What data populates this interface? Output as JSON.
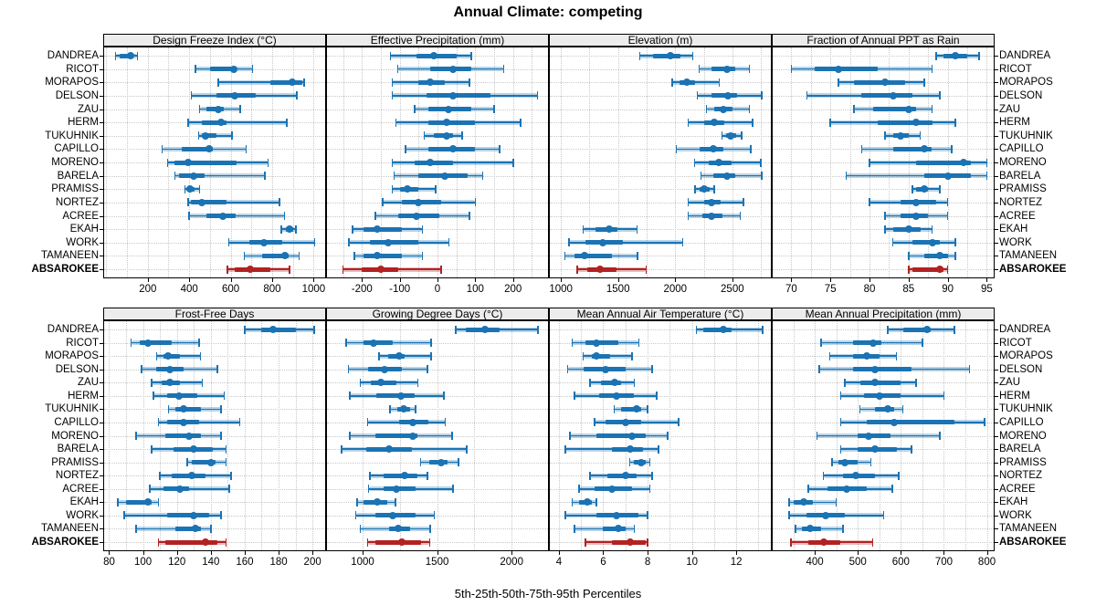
{
  "title": "Annual Climate: competing",
  "caption": "5th-25th-50th-75th-95th Percentiles",
  "colors": {
    "series": "#1b73b3",
    "series_band": "rgba(27,115,179,0.30)",
    "highlight": "#b22222",
    "highlight_band": "rgba(178,34,34,0.30)",
    "strip_bg": "#ececec",
    "grid": "#c8c8c8",
    "text": "#000000"
  },
  "chart_data": {
    "type": "dotplot",
    "subtype": "percentile-whisker",
    "percentiles": [
      5,
      25,
      50,
      75,
      95
    ],
    "legend": "none",
    "grid": "dotted",
    "highlight_site": "ABSAROKEE",
    "sites": [
      "DANDREA",
      "RICOT",
      "MORAPOS",
      "DELSON",
      "ZAU",
      "HERM",
      "TUKUHNIK",
      "CAPILLO",
      "MORENO",
      "BARELA",
      "PRAMISS",
      "NORTEZ",
      "ACREE",
      "EKAH",
      "WORK",
      "TAMANEEN",
      "ABSAROKEE"
    ],
    "panels": [
      {
        "title": "Design Freeze Index (°C)",
        "row": 0,
        "col": 0,
        "xlim": [
          -15,
          1060
        ],
        "ticks": [
          200,
          400,
          600,
          800,
          1000
        ],
        "grid_step": 100,
        "series": [
          [
            45,
            65,
            115,
            130,
            150
          ],
          [
            430,
            500,
            615,
            630,
            705
          ],
          [
            540,
            790,
            895,
            945,
            955
          ],
          [
            410,
            530,
            620,
            720,
            920
          ],
          [
            450,
            485,
            540,
            565,
            645
          ],
          [
            395,
            460,
            555,
            580,
            870
          ],
          [
            445,
            460,
            480,
            530,
            605
          ],
          [
            270,
            365,
            495,
            515,
            675
          ],
          [
            295,
            330,
            395,
            630,
            780
          ],
          [
            330,
            350,
            420,
            475,
            765
          ],
          [
            380,
            390,
            405,
            425,
            450
          ],
          [
            395,
            410,
            460,
            580,
            835
          ],
          [
            400,
            485,
            560,
            625,
            860
          ],
          [
            845,
            865,
            885,
            900,
            915
          ],
          [
            590,
            690,
            760,
            850,
            1005
          ],
          [
            665,
            750,
            860,
            880,
            930
          ],
          [
            585,
            620,
            695,
            790,
            885
          ]
        ]
      },
      {
        "title": "Effective Precipitation (mm)",
        "row": 0,
        "col": 1,
        "xlim": [
          -295,
          295
        ],
        "ticks": [
          -200,
          -100,
          0,
          100,
          200
        ],
        "grid_step": 50,
        "series": [
          [
            -125,
            -55,
            -10,
            50,
            90
          ],
          [
            -105,
            -20,
            40,
            90,
            175
          ],
          [
            -120,
            -50,
            -20,
            20,
            85
          ],
          [
            -120,
            -30,
            40,
            140,
            265
          ],
          [
            -60,
            -25,
            30,
            90,
            150
          ],
          [
            -110,
            -25,
            25,
            100,
            220
          ],
          [
            -35,
            -10,
            25,
            40,
            65
          ],
          [
            -85,
            -25,
            40,
            100,
            165
          ],
          [
            -120,
            -60,
            -20,
            40,
            200
          ],
          [
            -115,
            -50,
            20,
            80,
            120
          ],
          [
            -120,
            -100,
            -80,
            -50,
            -5
          ],
          [
            -145,
            -95,
            -50,
            10,
            100
          ],
          [
            -165,
            -105,
            -55,
            5,
            85
          ],
          [
            -225,
            -195,
            -160,
            -95,
            -40
          ],
          [
            -235,
            -180,
            -130,
            -50,
            30
          ],
          [
            -220,
            -195,
            -160,
            -95,
            -40
          ],
          [
            -250,
            -200,
            -150,
            -105,
            10
          ]
        ]
      },
      {
        "title": "Elevation (m)",
        "row": 0,
        "col": 2,
        "xlim": [
          895,
          2845
        ],
        "ticks": [
          1000,
          1500,
          2000,
          2500
        ],
        "grid_step": 250,
        "series": [
          [
            1690,
            1810,
            1960,
            2045,
            2155
          ],
          [
            2210,
            2320,
            2455,
            2525,
            2650
          ],
          [
            1975,
            2035,
            2105,
            2175,
            2385
          ],
          [
            2195,
            2315,
            2465,
            2545,
            2755
          ],
          [
            2275,
            2345,
            2425,
            2500,
            2650
          ],
          [
            2115,
            2255,
            2345,
            2430,
            2675
          ],
          [
            2410,
            2445,
            2485,
            2535,
            2580
          ],
          [
            2010,
            2210,
            2330,
            2420,
            2660
          ],
          [
            2170,
            2290,
            2385,
            2490,
            2750
          ],
          [
            2225,
            2330,
            2450,
            2525,
            2755
          ],
          [
            2175,
            2215,
            2255,
            2300,
            2340
          ],
          [
            2115,
            2250,
            2315,
            2395,
            2595
          ],
          [
            2115,
            2235,
            2320,
            2410,
            2570
          ],
          [
            1195,
            1305,
            1420,
            1495,
            1665
          ],
          [
            1070,
            1215,
            1365,
            1545,
            2065
          ],
          [
            1035,
            1115,
            1205,
            1445,
            1670
          ],
          [
            1145,
            1230,
            1345,
            1485,
            1745
          ]
        ]
      },
      {
        "title": "Fraction of Annual PPT as Rain",
        "row": 0,
        "col": 3,
        "xlim": [
          67.5,
          96
        ],
        "ticks": [
          70,
          75,
          80,
          85,
          90,
          95
        ],
        "grid_step": 2.5,
        "series": [
          [
            88.5,
            89.5,
            91,
            92.5,
            94
          ],
          [
            70,
            73,
            76,
            81,
            88
          ],
          [
            76,
            78,
            82,
            84.5,
            87
          ],
          [
            72,
            79,
            83,
            85.5,
            89
          ],
          [
            78,
            80.5,
            85,
            86,
            88
          ],
          [
            75,
            81,
            86,
            88,
            91
          ],
          [
            82,
            83,
            84,
            85,
            86.5
          ],
          [
            79,
            83,
            87,
            88,
            90.5
          ],
          [
            80,
            86,
            92,
            93,
            95
          ],
          [
            77,
            87,
            90,
            93,
            95
          ],
          [
            85.5,
            86,
            87,
            87.5,
            89
          ],
          [
            80,
            84,
            86,
            88.5,
            90
          ],
          [
            82,
            84,
            86,
            87.5,
            90
          ],
          [
            82,
            83,
            85,
            86.5,
            88
          ],
          [
            83,
            85.5,
            88,
            89,
            91
          ],
          [
            85,
            87,
            89,
            90,
            91
          ],
          [
            85,
            85.5,
            89,
            89.5,
            90
          ]
        ]
      },
      {
        "title": "Frost-Free Days",
        "row": 1,
        "col": 0,
        "xlim": [
          76.5,
          208
        ],
        "ticks": [
          80,
          100,
          120,
          140,
          160,
          180,
          200
        ],
        "grid_step": 10,
        "series": [
          [
            160,
            170,
            177,
            190,
            201
          ],
          [
            93,
            98,
            103,
            117,
            133
          ],
          [
            108,
            112,
            115,
            122,
            134
          ],
          [
            99,
            108,
            116,
            124,
            144
          ],
          [
            105,
            111,
            116,
            122,
            135
          ],
          [
            106,
            114,
            121,
            132,
            148
          ],
          [
            115,
            119,
            124,
            134,
            146
          ],
          [
            109,
            114,
            124,
            133,
            157
          ],
          [
            96,
            113,
            127,
            134,
            146
          ],
          [
            105,
            118,
            130,
            141,
            149
          ],
          [
            126,
            129,
            140,
            143,
            149
          ],
          [
            110,
            117,
            129,
            137,
            152
          ],
          [
            104,
            112,
            122,
            127,
            151
          ],
          [
            85,
            90,
            103,
            105,
            109
          ],
          [
            89,
            114,
            130,
            139,
            146
          ],
          [
            96,
            119,
            131,
            134,
            140
          ],
          [
            109,
            113,
            137,
            144,
            149
          ]
        ]
      },
      {
        "title": "Growing Degree Days (°C)",
        "row": 1,
        "col": 1,
        "xlim": [
          755,
          2250
        ],
        "ticks": [
          1000,
          1500,
          2000
        ],
        "grid_step": 250,
        "series": [
          [
            1625,
            1690,
            1820,
            1920,
            2175
          ],
          [
            890,
            1005,
            1075,
            1200,
            1460
          ],
          [
            1110,
            1170,
            1245,
            1280,
            1460
          ],
          [
            905,
            1035,
            1145,
            1265,
            1435
          ],
          [
            985,
            1055,
            1125,
            1225,
            1370
          ],
          [
            915,
            1095,
            1255,
            1350,
            1545
          ],
          [
            1185,
            1235,
            1275,
            1320,
            1355
          ],
          [
            1035,
            1245,
            1340,
            1440,
            1555
          ],
          [
            915,
            1085,
            1340,
            1370,
            1600
          ],
          [
            860,
            1025,
            1180,
            1330,
            1700
          ],
          [
            1390,
            1450,
            1525,
            1570,
            1645
          ],
          [
            1050,
            1140,
            1280,
            1370,
            1435
          ],
          [
            1040,
            1140,
            1225,
            1355,
            1605
          ],
          [
            965,
            1005,
            1100,
            1165,
            1220
          ],
          [
            955,
            1085,
            1200,
            1355,
            1480
          ],
          [
            985,
            1180,
            1240,
            1320,
            1455
          ],
          [
            1035,
            1085,
            1265,
            1395,
            1450
          ]
        ]
      },
      {
        "title": "Mean Annual Air Temperature (°C)",
        "row": 1,
        "col": 2,
        "xlim": [
          3.55,
          13.6
        ],
        "ticks": [
          4,
          6,
          8,
          10,
          12
        ],
        "grid_step": 1,
        "series": [
          [
            10.2,
            10.5,
            11.4,
            11.8,
            13.2
          ],
          [
            4.6,
            5.2,
            5.7,
            6.7,
            7.6
          ],
          [
            5.1,
            5.5,
            5.7,
            6.3,
            7.3
          ],
          [
            4.4,
            5.1,
            6.1,
            7.0,
            8.2
          ],
          [
            5.4,
            5.9,
            6.5,
            6.8,
            7.4
          ],
          [
            4.7,
            5.8,
            6.6,
            7.4,
            8.4
          ],
          [
            6.5,
            6.8,
            7.5,
            7.7,
            8.0
          ],
          [
            5.6,
            6.1,
            7.0,
            7.7,
            9.4
          ],
          [
            4.5,
            5.7,
            7.3,
            7.9,
            8.9
          ],
          [
            4.3,
            6.4,
            7.2,
            7.8,
            8.5
          ],
          [
            7.2,
            7.4,
            7.7,
            7.9,
            8.1
          ],
          [
            5.4,
            6.2,
            7.0,
            7.5,
            8.2
          ],
          [
            4.9,
            5.6,
            6.4,
            7.3,
            8.1
          ],
          [
            4.6,
            4.9,
            5.3,
            5.5,
            5.7
          ],
          [
            4.3,
            5.7,
            6.6,
            7.6,
            8.0
          ],
          [
            4.7,
            6.0,
            6.7,
            7.0,
            7.4
          ],
          [
            5.2,
            6.4,
            7.2,
            7.9,
            8.0
          ]
        ]
      },
      {
        "title": "Mean Annual Precipitation (mm)",
        "row": 1,
        "col": 3,
        "xlim": [
          300,
          818
        ],
        "ticks": [
          400,
          500,
          600,
          700,
          800
        ],
        "grid_step": 50,
        "series": [
          [
            570,
            605,
            660,
            670,
            725
          ],
          [
            415,
            490,
            535,
            555,
            650
          ],
          [
            435,
            490,
            520,
            550,
            590
          ],
          [
            410,
            490,
            540,
            625,
            760
          ],
          [
            470,
            505,
            540,
            600,
            635
          ],
          [
            460,
            515,
            550,
            600,
            700
          ],
          [
            505,
            540,
            570,
            585,
            605
          ],
          [
            460,
            520,
            585,
            725,
            795
          ],
          [
            405,
            500,
            525,
            575,
            690
          ],
          [
            460,
            500,
            540,
            590,
            625
          ],
          [
            440,
            455,
            470,
            500,
            530
          ],
          [
            420,
            465,
            495,
            540,
            595
          ],
          [
            385,
            430,
            475,
            520,
            580
          ],
          [
            340,
            350,
            375,
            395,
            450
          ],
          [
            340,
            380,
            425,
            470,
            560
          ],
          [
            355,
            370,
            390,
            415,
            465
          ],
          [
            345,
            385,
            420,
            460,
            535
          ]
        ]
      }
    ]
  }
}
